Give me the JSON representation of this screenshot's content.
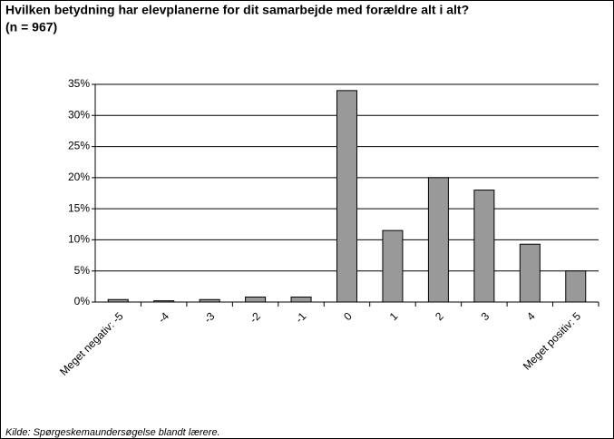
{
  "chart_data": {
    "type": "bar",
    "title": "Hvilken betydning har elevplanerne for dit samarbejde med forældre alt i alt?",
    "subtitle": "(n = 967)",
    "source": "Kilde: Spørgeskemaundersøgelse blandt lærere.",
    "categories": [
      "Meget negativ: -5",
      "-4",
      "-3",
      "-2",
      "-1",
      "0",
      "1",
      "2",
      "3",
      "4",
      "Meget positiv: 5"
    ],
    "values": [
      0.4,
      0.2,
      0.4,
      0.8,
      0.8,
      34,
      11.5,
      20,
      18,
      9.3,
      5
    ],
    "color": "#999999",
    "ylim": [
      0,
      35
    ],
    "yticks": [
      {
        "value": 0,
        "label": "0%"
      },
      {
        "value": 5,
        "label": "5%"
      },
      {
        "value": 10,
        "label": "10%"
      },
      {
        "value": 15,
        "label": "15%"
      },
      {
        "value": 20,
        "label": "20%"
      },
      {
        "value": 25,
        "label": "25%"
      },
      {
        "value": 30,
        "label": "30%"
      },
      {
        "value": 35,
        "label": "35%"
      }
    ],
    "grid": true
  }
}
